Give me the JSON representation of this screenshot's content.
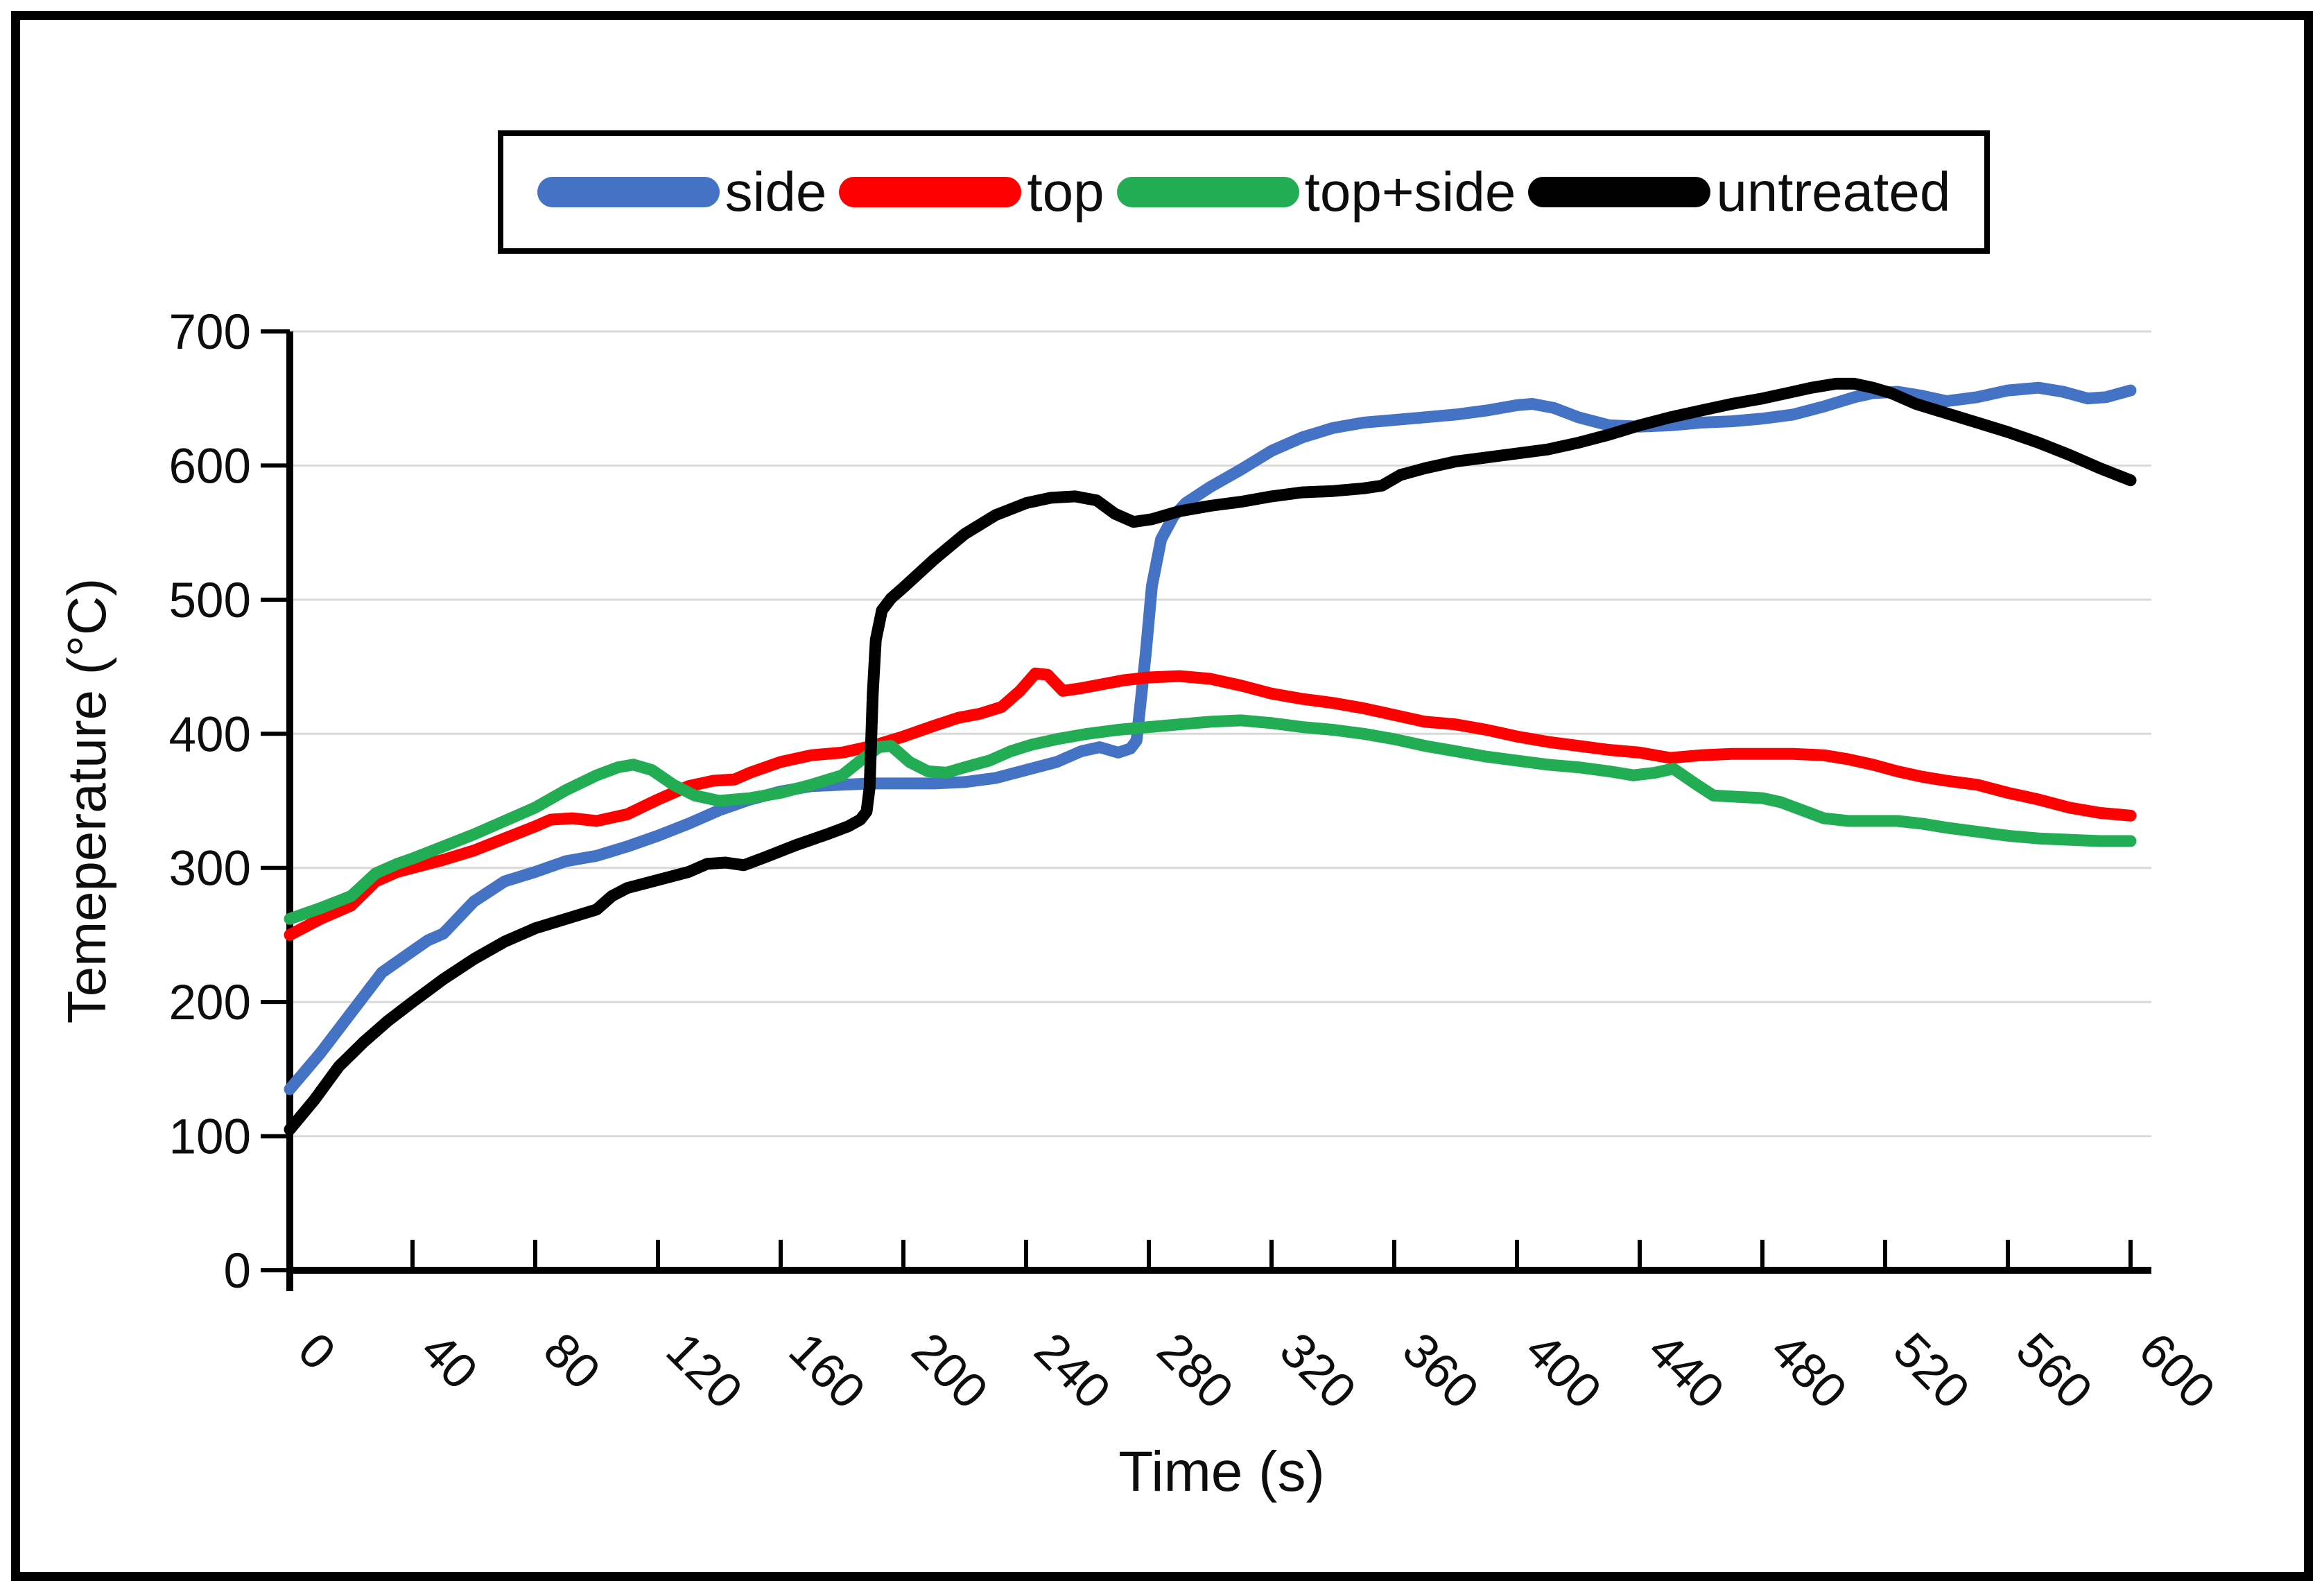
{
  "chart_data": {
    "type": "line",
    "title": "",
    "xlabel": "Time (s)",
    "ylabel": "Temeperature (°C)",
    "xlim": [
      0,
      600
    ],
    "ylim": [
      0,
      700
    ],
    "x_ticks": [
      0,
      40,
      80,
      120,
      160,
      200,
      240,
      280,
      320,
      360,
      400,
      440,
      480,
      520,
      560,
      600
    ],
    "y_ticks": [
      0,
      100,
      200,
      300,
      400,
      500,
      600,
      700
    ],
    "grid": "horizontal",
    "grid_color": "#D9D9D9",
    "axis_color": "#000000",
    "legend_position": "top-boxed",
    "series": [
      {
        "name": "side",
        "color": "#4472C4",
        "points": [
          [
            0,
            135
          ],
          [
            10,
            162
          ],
          [
            20,
            192
          ],
          [
            30,
            222
          ],
          [
            40,
            238
          ],
          [
            45,
            246
          ],
          [
            50,
            251
          ],
          [
            60,
            275
          ],
          [
            70,
            290
          ],
          [
            80,
            297
          ],
          [
            90,
            305
          ],
          [
            100,
            309
          ],
          [
            110,
            316
          ],
          [
            120,
            324
          ],
          [
            130,
            333
          ],
          [
            140,
            343
          ],
          [
            150,
            351
          ],
          [
            160,
            357
          ],
          [
            170,
            361
          ],
          [
            180,
            362
          ],
          [
            190,
            363
          ],
          [
            200,
            363
          ],
          [
            210,
            363
          ],
          [
            220,
            364
          ],
          [
            230,
            367
          ],
          [
            240,
            373
          ],
          [
            250,
            379
          ],
          [
            258,
            387
          ],
          [
            264,
            390
          ],
          [
            270,
            386
          ],
          [
            274,
            389
          ],
          [
            276,
            395
          ],
          [
            279,
            460
          ],
          [
            281,
            510
          ],
          [
            284,
            545
          ],
          [
            288,
            562
          ],
          [
            292,
            572
          ],
          [
            296,
            578
          ],
          [
            300,
            584
          ],
          [
            310,
            597
          ],
          [
            320,
            611
          ],
          [
            330,
            621
          ],
          [
            340,
            628
          ],
          [
            350,
            632
          ],
          [
            360,
            634
          ],
          [
            370,
            636
          ],
          [
            380,
            638
          ],
          [
            390,
            641
          ],
          [
            400,
            645
          ],
          [
            405,
            646
          ],
          [
            412,
            643
          ],
          [
            420,
            636
          ],
          [
            430,
            630
          ],
          [
            440,
            629
          ],
          [
            450,
            630
          ],
          [
            460,
            632
          ],
          [
            470,
            633
          ],
          [
            480,
            635
          ],
          [
            490,
            638
          ],
          [
            500,
            644
          ],
          [
            510,
            651
          ],
          [
            516,
            654
          ],
          [
            524,
            655
          ],
          [
            532,
            652
          ],
          [
            540,
            648
          ],
          [
            550,
            651
          ],
          [
            560,
            656
          ],
          [
            570,
            658
          ],
          [
            578,
            655
          ],
          [
            586,
            650
          ],
          [
            592,
            651
          ],
          [
            600,
            656
          ]
        ]
      },
      {
        "name": "top",
        "color": "#FF0000",
        "points": [
          [
            0,
            250
          ],
          [
            10,
            262
          ],
          [
            20,
            272
          ],
          [
            28,
            290
          ],
          [
            35,
            297
          ],
          [
            40,
            300
          ],
          [
            50,
            306
          ],
          [
            60,
            313
          ],
          [
            70,
            322
          ],
          [
            80,
            331
          ],
          [
            85,
            336
          ],
          [
            92,
            337
          ],
          [
            100,
            335
          ],
          [
            110,
            340
          ],
          [
            120,
            351
          ],
          [
            130,
            361
          ],
          [
            138,
            365
          ],
          [
            145,
            366
          ],
          [
            150,
            371
          ],
          [
            160,
            379
          ],
          [
            170,
            384
          ],
          [
            180,
            386
          ],
          [
            190,
            391
          ],
          [
            200,
            398
          ],
          [
            210,
            406
          ],
          [
            218,
            412
          ],
          [
            225,
            415
          ],
          [
            232,
            420
          ],
          [
            238,
            432
          ],
          [
            243,
            445
          ],
          [
            247,
            444
          ],
          [
            252,
            432
          ],
          [
            258,
            434
          ],
          [
            265,
            437
          ],
          [
            272,
            440
          ],
          [
            280,
            442
          ],
          [
            290,
            443
          ],
          [
            300,
            441
          ],
          [
            310,
            436
          ],
          [
            320,
            430
          ],
          [
            330,
            426
          ],
          [
            340,
            423
          ],
          [
            350,
            419
          ],
          [
            360,
            414
          ],
          [
            370,
            409
          ],
          [
            380,
            407
          ],
          [
            390,
            403
          ],
          [
            400,
            398
          ],
          [
            410,
            394
          ],
          [
            420,
            391
          ],
          [
            430,
            388
          ],
          [
            440,
            386
          ],
          [
            450,
            382
          ],
          [
            460,
            384
          ],
          [
            470,
            385
          ],
          [
            480,
            385
          ],
          [
            490,
            385
          ],
          [
            500,
            384
          ],
          [
            508,
            381
          ],
          [
            516,
            377
          ],
          [
            524,
            372
          ],
          [
            532,
            368
          ],
          [
            540,
            365
          ],
          [
            550,
            362
          ],
          [
            560,
            356
          ],
          [
            570,
            351
          ],
          [
            580,
            345
          ],
          [
            590,
            341
          ],
          [
            600,
            339
          ]
        ]
      },
      {
        "name": "top+side",
        "color": "#22AC53",
        "points": [
          [
            0,
            262
          ],
          [
            10,
            270
          ],
          [
            20,
            279
          ],
          [
            28,
            296
          ],
          [
            35,
            303
          ],
          [
            40,
            307
          ],
          [
            50,
            316
          ],
          [
            60,
            325
          ],
          [
            70,
            335
          ],
          [
            80,
            345
          ],
          [
            90,
            358
          ],
          [
            100,
            369
          ],
          [
            107,
            375
          ],
          [
            112,
            377
          ],
          [
            118,
            373
          ],
          [
            125,
            362
          ],
          [
            132,
            354
          ],
          [
            140,
            350
          ],
          [
            150,
            352
          ],
          [
            160,
            356
          ],
          [
            170,
            362
          ],
          [
            180,
            369
          ],
          [
            186,
            380
          ],
          [
            192,
            390
          ],
          [
            196,
            391
          ],
          [
            202,
            379
          ],
          [
            208,
            372
          ],
          [
            214,
            371
          ],
          [
            220,
            375
          ],
          [
            228,
            380
          ],
          [
            235,
            387
          ],
          [
            242,
            392
          ],
          [
            250,
            396
          ],
          [
            260,
            400
          ],
          [
            270,
            403
          ],
          [
            280,
            405
          ],
          [
            290,
            407
          ],
          [
            300,
            409
          ],
          [
            310,
            410
          ],
          [
            320,
            408
          ],
          [
            330,
            405
          ],
          [
            340,
            403
          ],
          [
            350,
            400
          ],
          [
            360,
            396
          ],
          [
            370,
            391
          ],
          [
            380,
            387
          ],
          [
            390,
            383
          ],
          [
            400,
            380
          ],
          [
            410,
            377
          ],
          [
            420,
            375
          ],
          [
            430,
            372
          ],
          [
            438,
            369
          ],
          [
            445,
            371
          ],
          [
            451,
            374
          ],
          [
            458,
            363
          ],
          [
            464,
            354
          ],
          [
            472,
            353
          ],
          [
            480,
            352
          ],
          [
            486,
            349
          ],
          [
            493,
            343
          ],
          [
            500,
            337
          ],
          [
            508,
            335
          ],
          [
            516,
            335
          ],
          [
            524,
            335
          ],
          [
            532,
            333
          ],
          [
            540,
            330
          ],
          [
            550,
            327
          ],
          [
            560,
            324
          ],
          [
            570,
            322
          ],
          [
            580,
            321
          ],
          [
            590,
            320
          ],
          [
            600,
            320
          ]
        ]
      },
      {
        "name": "untreated",
        "color": "#000000",
        "points": [
          [
            0,
            105
          ],
          [
            8,
            127
          ],
          [
            16,
            152
          ],
          [
            24,
            170
          ],
          [
            32,
            186
          ],
          [
            40,
            200
          ],
          [
            50,
            217
          ],
          [
            60,
            232
          ],
          [
            70,
            245
          ],
          [
            80,
            255
          ],
          [
            90,
            262
          ],
          [
            100,
            269
          ],
          [
            105,
            279
          ],
          [
            110,
            285
          ],
          [
            120,
            291
          ],
          [
            130,
            297
          ],
          [
            136,
            303
          ],
          [
            142,
            304
          ],
          [
            148,
            302
          ],
          [
            155,
            308
          ],
          [
            165,
            317
          ],
          [
            175,
            325
          ],
          [
            182,
            331
          ],
          [
            186,
            336
          ],
          [
            188,
            342
          ],
          [
            189,
            360
          ],
          [
            190,
            430
          ],
          [
            191,
            470
          ],
          [
            193,
            492
          ],
          [
            196,
            501
          ],
          [
            200,
            509
          ],
          [
            210,
            530
          ],
          [
            220,
            549
          ],
          [
            230,
            563
          ],
          [
            240,
            572
          ],
          [
            248,
            576
          ],
          [
            256,
            577
          ],
          [
            263,
            574
          ],
          [
            269,
            564
          ],
          [
            275,
            558
          ],
          [
            281,
            560
          ],
          [
            290,
            566
          ],
          [
            300,
            570
          ],
          [
            310,
            573
          ],
          [
            320,
            577
          ],
          [
            330,
            580
          ],
          [
            340,
            581
          ],
          [
            350,
            583
          ],
          [
            356,
            585
          ],
          [
            362,
            593
          ],
          [
            370,
            598
          ],
          [
            380,
            603
          ],
          [
            390,
            606
          ],
          [
            400,
            609
          ],
          [
            410,
            612
          ],
          [
            420,
            617
          ],
          [
            430,
            623
          ],
          [
            440,
            630
          ],
          [
            450,
            636
          ],
          [
            460,
            641
          ],
          [
            470,
            646
          ],
          [
            480,
            650
          ],
          [
            488,
            654
          ],
          [
            496,
            658
          ],
          [
            504,
            661
          ],
          [
            510,
            661
          ],
          [
            516,
            658
          ],
          [
            522,
            654
          ],
          [
            530,
            646
          ],
          [
            540,
            639
          ],
          [
            550,
            632
          ],
          [
            560,
            625
          ],
          [
            570,
            617
          ],
          [
            580,
            608
          ],
          [
            590,
            598
          ],
          [
            600,
            589
          ]
        ]
      }
    ]
  }
}
